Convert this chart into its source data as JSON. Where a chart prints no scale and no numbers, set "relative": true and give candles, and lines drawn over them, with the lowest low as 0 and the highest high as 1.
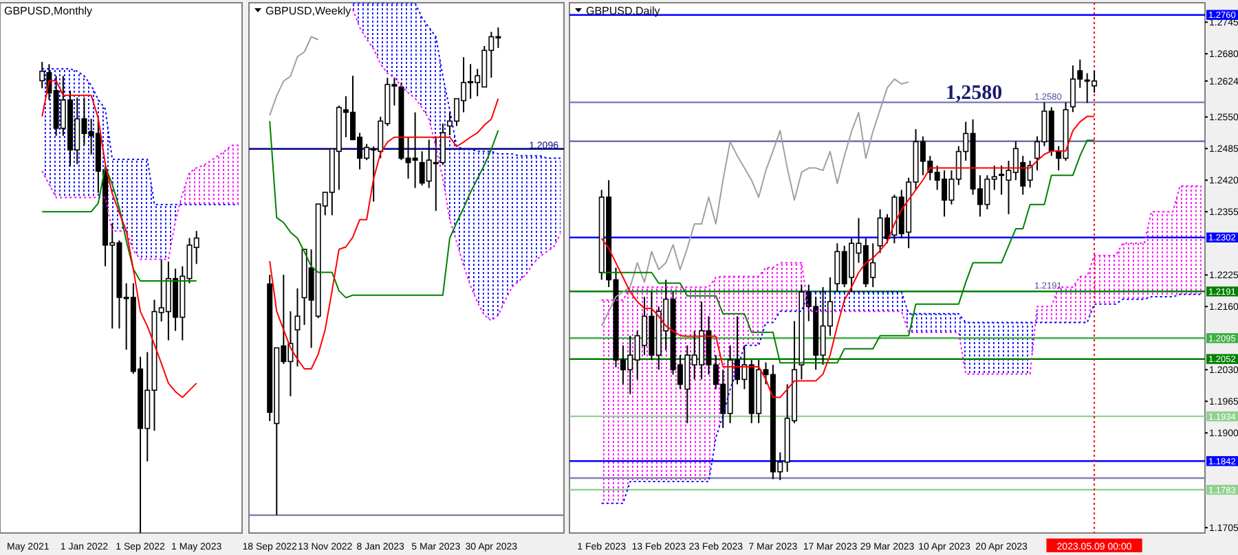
{
  "chart_data": [
    {
      "type": "candlestick",
      "title": "GBPUSD,Monthly",
      "relative": true,
      "tick_labels": "x",
      "categories": [
        "May 2021",
        null,
        null,
        null,
        null,
        null,
        null,
        null,
        "1 Jan 2022",
        null,
        null,
        null,
        null,
        null,
        null,
        null,
        "1 Sep 2022",
        null,
        null,
        null,
        null,
        null,
        null,
        null,
        "1 May 2023",
        null,
        null,
        null,
        null,
        null,
        null
      ],
      "ohlc": [
        null,
        null,
        [
          0.96,
          1.0,
          0.944,
          0.98
        ],
        [
          0.977,
          0.995,
          0.919,
          0.934
        ],
        [
          0.939,
          0.97,
          0.843,
          0.859
        ],
        [
          0.859,
          0.97,
          0.843,
          0.919
        ],
        [
          0.919,
          0.939,
          0.778,
          0.813
        ],
        [
          0.813,
          0.924,
          0.783,
          0.879
        ],
        [
          0.879,
          0.924,
          0.823,
          0.848
        ],
        [
          0.852,
          0.879,
          0.803,
          0.843
        ],
        [
          0.848,
          0.879,
          0.722,
          0.768
        ],
        [
          0.768,
          0.778,
          0.566,
          0.611
        ],
        [
          0.611,
          0.657,
          0.434,
          0.616
        ],
        [
          0.616,
          0.621,
          0.434,
          0.5
        ],
        [
          0.498,
          0.53,
          0.389,
          0.5
        ],
        [
          0.5,
          0.53,
          0.338,
          0.343
        ],
        [
          0.348,
          0.374,
          0,
          0.222
        ],
        [
          0.222,
          0.384,
          0.152,
          0.303
        ],
        [
          0.303,
          0.495,
          0.217,
          0.47
        ],
        [
          0.468,
          0.581,
          0.449,
          0.478
        ],
        [
          0.47,
          0.576,
          0.409,
          0.54
        ],
        [
          0.54,
          0.561,
          0.429,
          0.458
        ],
        [
          0.458,
          0.566,
          0.409,
          0.545
        ],
        [
          0.54,
          0.626,
          0.53,
          0.611
        ],
        [
          0.606,
          0.641,
          0.571,
          0.626
        ],
        null,
        null,
        null,
        null,
        null,
        null
      ],
      "series": [
        {
          "type": "line",
          "line_style": "dotted",
          "color": "#ff00ff",
          "values": [
            null,
            null,
            0.768,
            0.74,
            0.712,
            0.712,
            0.712,
            0.712,
            0.712,
            0.712,
            0.712,
            0.712,
            0.641,
            0.641,
            0.641,
            0.6,
            0.581,
            0.581,
            0.581,
            0.581,
            0.581,
            0.662,
            0.72,
            0.765,
            0.775,
            0.78,
            0.79,
            0.8,
            0.81,
            0.823,
            0.823
          ]
        },
        {
          "type": "line",
          "line_style": "dotted",
          "color": "#0000ff",
          "values": [
            null,
            null,
            0.985,
            0.985,
            0.985,
            0.985,
            0.985,
            0.98,
            0.97,
            0.95,
            0.92,
            0.9,
            0.793,
            0.793,
            0.793,
            0.793,
            0.793,
            0.793,
            0.697,
            0.697,
            0.697,
            0.697,
            0.697,
            0.697,
            0.697,
            0.697,
            0.697,
            0.697,
            0.697,
            0.697,
            0.697
          ]
        },
        {
          "type": "line",
          "color": "#008000",
          "values": [
            null,
            null,
            0.682,
            0.682,
            0.682,
            0.682,
            0.682,
            0.682,
            0.682,
            0.682,
            0.7,
            0.778,
            0.74,
            0.69,
            0.62,
            0.56,
            0.535,
            0.535,
            0.535,
            0.535,
            0.535,
            0.535,
            0.535,
            0.535,
            0.535,
            null,
            null,
            null,
            null,
            null,
            null
          ]
        },
        {
          "type": "line",
          "color": "#ff0000",
          "values": [
            null,
            null,
            0.884,
            0.96,
            0.96,
            0.929,
            0.929,
            0.929,
            0.929,
            0.929,
            0.88,
            0.783,
            0.72,
            0.68,
            0.641,
            0.56,
            0.47,
            0.439,
            0.4,
            0.36,
            0.318,
            0.3,
            0.288,
            0.303,
            0.318,
            null,
            null,
            null,
            null,
            null,
            null
          ]
        }
      ]
    },
    {
      "type": "candlestick",
      "title": "GBPUSD,Weekly",
      "relative": true,
      "tick_labels": "x",
      "categories": [
        "18 Sep 2022",
        null,
        null,
        null,
        null,
        null,
        null,
        null,
        "13 Nov 2022",
        null,
        null,
        null,
        null,
        null,
        null,
        null,
        "8 Jan 2023",
        null,
        null,
        null,
        null,
        null,
        null,
        null,
        "5 Mar 2023",
        null,
        null,
        null,
        null,
        null,
        null,
        null,
        "30 Apr 2023",
        null,
        null,
        null,
        null,
        null,
        null,
        null,
        null,
        null,
        null
      ],
      "ohlc": [
        [
          0.474,
          0.493,
          0.193,
          0.211
        ],
        [
          0.188,
          0.343,
          0,
          0.343
        ],
        [
          0.347,
          0.493,
          0.31,
          0.315
        ],
        [
          0.315,
          0.418,
          0.244,
          0.352
        ],
        [
          0.38,
          0.465,
          0.305,
          0.408
        ],
        [
          0.446,
          0.545,
          0.39,
          0.545
        ],
        [
          0.507,
          0.545,
          0.343,
          0.441
        ],
        [
          0.408,
          0.638,
          0.404,
          0.638
        ],
        [
          0.634,
          0.662,
          0.615,
          0.662
        ],
        [
          0.662,
          0.751,
          0.615,
          0.751
        ],
        [
          0.746,
          0.84,
          0.667,
          0.836
        ],
        [
          0.831,
          0.859,
          0.775,
          0.826
        ],
        [
          0.826,
          0.901,
          0.77,
          0.77
        ],
        [
          0.775,
          0.784,
          0.709,
          0.732
        ],
        [
          0.732,
          0.761,
          0.728,
          0.754
        ],
        [
          0.751,
          0.756,
          0.643,
          0.751
        ],
        [
          0.746,
          0.817,
          0.732,
          0.808
        ],
        [
          0.803,
          0.897,
          0.798,
          0.883
        ],
        [
          0.883,
          0.897,
          0.84,
          0.88
        ],
        [
          0.878,
          0.887,
          0.728,
          0.732
        ],
        [
          0.732,
          0.775,
          0.69,
          0.723
        ],
        [
          0.732,
          0.826,
          0.671,
          0.728
        ],
        [
          0.723,
          0.746,
          0.676,
          0.681
        ],
        [
          0.685,
          0.77,
          0.671,
          0.728
        ],
        [
          0.723,
          0.775,
          0.624,
          0.723
        ],
        [
          0.723,
          0.803,
          0.718,
          0.784
        ],
        [
          0.798,
          0.826,
          0.779,
          0.808
        ],
        [
          0.808,
          0.854,
          0.798,
          0.854
        ],
        [
          0.85,
          0.939,
          0.826,
          0.887
        ],
        [
          0.887,
          0.925,
          0.854,
          0.889
        ],
        [
          0.887,
          0.915,
          0.859,
          0.901
        ],
        [
          0.878,
          0.962,
          0.878,
          0.953
        ],
        [
          0.953,
          0.991,
          0.897,
          0.981
        ],
        [
          0.981,
          1,
          0.958,
          0.981
        ],
        null,
        null,
        null,
        null,
        null,
        null,
        null,
        null,
        null
      ],
      "series": [
        {
          "type": "line",
          "line_style": "dotted",
          "color": "#ff00ff",
          "values": [
            null,
            null,
            null,
            null,
            null,
            null,
            null,
            null,
            null,
            null,
            null,
            null,
            1.037,
            1.0,
            0.976,
            0.956,
            0.925,
            0.906,
            0.897,
            0.88,
            0.866,
            0.855,
            0.835,
            0.812,
            0.755,
            0.69,
            0.606,
            0.56,
            0.512,
            0.47,
            0.437,
            0.41,
            0.399,
            0.41,
            0.44,
            0.468,
            0.48,
            0.493,
            0.515,
            0.53,
            0.54,
            0.55,
            0.577
          ]
        },
        {
          "type": "line",
          "line_style": "dotted",
          "color": "#0000ff",
          "values": [
            null,
            null,
            null,
            null,
            null,
            null,
            null,
            null,
            null,
            null,
            null,
            null,
            1.05,
            1.05,
            1.05,
            1.05,
            1.05,
            1.05,
            1.05,
            1.05,
            1.05,
            1.05,
            1.02,
            1.0,
            0.981,
            0.9,
            0.831,
            0.756,
            0.751,
            0.751,
            0.746,
            0.746,
            0.746,
            0.741,
            0.741,
            0.741,
            0.737,
            0.737,
            0.737,
            0.737,
            0.732,
            0.732,
            0.732
          ]
        },
        {
          "type": "line",
          "color": "#a0a0a0",
          "values": [
            0.82,
            0.86,
            0.89,
            0.9,
            0.94,
            0.95,
            0.981,
            0.975,
            null,
            null,
            null,
            null,
            null,
            null,
            null,
            null,
            null,
            null,
            null,
            null,
            null,
            null,
            null,
            null,
            null,
            null,
            null,
            null,
            null,
            null,
            null,
            null,
            null,
            null,
            null,
            null,
            null,
            null,
            null,
            null,
            null,
            null,
            null
          ]
        },
        {
          "type": "line",
          "color": "#008000",
          "values": [
            0.808,
            0.61,
            0.6,
            0.58,
            0.568,
            0.54,
            0.51,
            0.498,
            0.498,
            0.498,
            0.46,
            0.446,
            0.451,
            0.451,
            0.451,
            0.451,
            0.451,
            0.451,
            0.451,
            0.451,
            0.451,
            0.451,
            0.451,
            0.451,
            0.451,
            0.451,
            0.568,
            0.6,
            0.63,
            0.662,
            0.69,
            0.718,
            0.75,
            0.789,
            null,
            null,
            null,
            null,
            null,
            null,
            null,
            null,
            null
          ]
        },
        {
          "type": "line",
          "color": "#ff0000",
          "values": [
            0.521,
            0.418,
            0.38,
            0.343,
            0.32,
            0.3,
            0.3,
            0.33,
            0.38,
            0.46,
            0.545,
            0.55,
            0.57,
            0.606,
            0.606,
            0.69,
            0.742,
            0.765,
            0.775,
            0.775,
            0.775,
            0.775,
            0.775,
            0.775,
            0.775,
            0.775,
            0.775,
            0.756,
            0.765,
            0.775,
            0.784,
            0.8,
            0.812,
            0.854,
            null,
            null,
            null,
            null,
            null,
            null,
            null,
            null,
            null
          ]
        }
      ],
      "ref_lines": [
        {
          "axis": "y",
          "value": 0.751,
          "color": "#000080"
        },
        {
          "axis": "y",
          "value": 0,
          "color": "#8080b0"
        }
      ],
      "annotations": [
        "1.2096"
      ]
    },
    {
      "type": "candlestick",
      "title": "GBPUSD,Daily",
      "categories": [
        "1 Feb 2023",
        null,
        null,
        null,
        null,
        null,
        null,
        null,
        "13 Feb 2023",
        null,
        null,
        null,
        null,
        null,
        null,
        null,
        "23 Feb 2023",
        null,
        null,
        null,
        null,
        null,
        null,
        null,
        "7 Mar 2023",
        null,
        null,
        null,
        null,
        null,
        null,
        null,
        "17 Mar 2023",
        null,
        null,
        null,
        null,
        null,
        null,
        null,
        "29 Mar 2023",
        null,
        null,
        null,
        null,
        null,
        null,
        null,
        "10 Apr 2023",
        null,
        null,
        null,
        null,
        null,
        null,
        null,
        "20 Apr 2023",
        null,
        null,
        null,
        null,
        null,
        null,
        null,
        null,
        null,
        null,
        null,
        null,
        "2023.05.09 00:00",
        null,
        null,
        null,
        null,
        null,
        null,
        null,
        null,
        null,
        null,
        null,
        null,
        null,
        null,
        null
      ],
      "ylim": [
        1.1694,
        1.2785
      ],
      "yticks": [
        1.2745,
        {
          "value": 1.268,
          "label": "1.2680"
        },
        1.2624,
        {
          "value": 1.255,
          "label": "1.2550"
        },
        1.2485,
        {
          "value": 1.242,
          "label": "1.2420"
        },
        1.2355,
        1.2225,
        {
          "value": 1.216,
          "label": "1.2160"
        },
        {
          "value": 1.203,
          "label": "1.2030"
        },
        1.1965,
        {
          "value": 1.19,
          "label": "1.1900"
        },
        1.1705
      ],
      "ohlc": [
        [
          1.223,
          1.24,
          1.2215,
          1.2385
        ],
        [
          1.2385,
          1.242,
          1.22,
          1.2215
        ],
        [
          1.2215,
          1.224,
          1.2035,
          1.205
        ],
        [
          1.205,
          1.208,
          1.2,
          1.203
        ],
        [
          1.203,
          1.21,
          1.198,
          1.206
        ],
        [
          1.205,
          1.211,
          1.201,
          1.21
        ],
        [
          1.208,
          1.218,
          1.206,
          1.214
        ],
        [
          1.214,
          1.219,
          1.205,
          1.206
        ],
        [
          1.206,
          1.216,
          1.203,
          1.215
        ],
        [
          1.211,
          1.2215,
          1.207,
          1.2175
        ],
        [
          1.2175,
          1.219,
          1.202,
          1.203
        ],
        [
          1.204,
          1.206,
          1.199,
          1.2
        ],
        [
          1.199,
          1.208,
          1.192,
          1.206
        ],
        [
          1.204,
          1.211,
          1.201,
          1.206
        ],
        [
          1.204,
          1.217,
          1.201,
          1.211
        ],
        [
          1.211,
          1.214,
          1.202,
          1.204
        ],
        [
          1.204,
          1.206,
          1.199,
          1.2
        ],
        [
          1.2,
          1.203,
          1.191,
          1.194
        ],
        [
          1.194,
          1.208,
          1.192,
          1.205
        ],
        [
          1.205,
          1.214,
          1.2,
          1.201
        ],
        [
          1.201,
          1.208,
          1.199,
          1.204
        ],
        [
          1.204,
          1.205,
          1.192,
          1.194
        ],
        [
          1.194,
          1.205,
          1.192,
          1.203
        ],
        [
          1.203,
          1.2045,
          1.2,
          1.202
        ],
        [
          1.202,
          1.204,
          1.1805,
          1.182
        ],
        [
          1.182,
          1.186,
          1.1803,
          1.184
        ],
        [
          1.184,
          1.2,
          1.182,
          1.193
        ],
        [
          1.1925,
          1.213,
          1.192,
          1.203
        ],
        [
          1.204,
          1.2205,
          1.201,
          1.219
        ],
        [
          1.219,
          1.2205,
          1.213,
          1.216
        ],
        [
          1.216,
          1.218,
          1.203,
          1.206
        ],
        [
          1.206,
          1.22,
          1.204,
          1.212
        ],
        [
          1.212,
          1.222,
          1.21,
          1.217
        ],
        [
          1.2207,
          1.229,
          1.219,
          1.2273
        ],
        [
          1.2273,
          1.2285,
          1.22,
          1.2207
        ],
        [
          1.222,
          1.23,
          1.219,
          1.229
        ],
        [
          1.227,
          1.2342,
          1.225,
          1.229
        ],
        [
          1.2285,
          1.23,
          1.22,
          1.2207
        ],
        [
          1.222,
          1.229,
          1.22,
          1.225
        ],
        [
          1.2285,
          1.236,
          1.227,
          1.2342
        ],
        [
          1.2342,
          1.235,
          1.229,
          1.23
        ],
        [
          1.2307,
          1.239,
          1.229,
          1.2385
        ],
        [
          1.2385,
          1.24,
          1.23,
          1.231
        ],
        [
          1.2313,
          1.2425,
          1.228,
          1.2416
        ],
        [
          1.2416,
          1.2525,
          1.24,
          1.2499
        ],
        [
          1.2499,
          1.251,
          1.243,
          1.2459
        ],
        [
          1.2459,
          1.247,
          1.242,
          1.2436
        ],
        [
          1.2436,
          1.245,
          1.24,
          1.242
        ],
        [
          1.2422,
          1.244,
          1.2345,
          1.2379
        ],
        [
          1.2379,
          1.244,
          1.237,
          1.2422
        ],
        [
          1.2422,
          1.249,
          1.241,
          1.2479
        ],
        [
          1.2479,
          1.254,
          1.246,
          1.2516
        ],
        [
          1.2516,
          1.2545,
          1.239,
          1.2402
        ],
        [
          1.2402,
          1.243,
          1.2345,
          1.237
        ],
        [
          1.237,
          1.243,
          1.236,
          1.2422
        ],
        [
          1.2422,
          1.245,
          1.24,
          1.2427
        ],
        [
          1.243,
          1.245,
          1.239,
          1.2432
        ],
        [
          1.242,
          1.246,
          1.235,
          1.244
        ],
        [
          1.2436,
          1.25,
          1.242,
          1.2485
        ],
        [
          1.2456,
          1.247,
          1.239,
          1.2408
        ],
        [
          1.242,
          1.246,
          1.2405,
          1.245
        ],
        [
          1.2465,
          1.251,
          1.244,
          1.2499
        ],
        [
          1.2499,
          1.258,
          1.249,
          1.2562
        ],
        [
          1.2562,
          1.257,
          1.247,
          1.248
        ],
        [
          1.248,
          1.249,
          1.244,
          1.2465
        ],
        [
          1.2465,
          1.258,
          1.246,
          1.2565
        ],
        [
          1.2571,
          1.2656,
          1.256,
          1.2628
        ],
        [
          1.2645,
          1.2668,
          1.261,
          1.2628
        ],
        [
          1.2626,
          1.264,
          1.2579,
          1.2624
        ],
        [
          1.2614,
          1.2645,
          1.26,
          1.2624
        ],
        null,
        null,
        null,
        null,
        null,
        null,
        null,
        null,
        null,
        null,
        null,
        null,
        null,
        null,
        null
      ],
      "series": [
        {
          "type": "line",
          "line_style": "dotted",
          "color": "#ff00ff",
          "values": [
            1.2173,
            1.2173,
            1.2173,
            1.2173,
            1.22,
            1.22,
            1.22,
            1.22,
            1.22,
            1.22,
            1.22,
            1.22,
            1.22,
            1.22,
            1.22,
            1.22,
            1.222,
            1.2222,
            1.2222,
            1.2222,
            1.2222,
            1.2222,
            1.2222,
            1.224,
            1.224,
            1.225,
            1.225,
            1.225,
            1.225,
            1.215,
            1.215,
            1.215,
            1.215,
            1.215,
            1.215,
            1.215,
            1.215,
            1.215,
            1.215,
            1.215,
            1.215,
            1.215,
            1.215,
            1.2107,
            1.2107,
            1.2107,
            1.2107,
            1.2107,
            1.2107,
            1.2107,
            1.2107,
            1.2021,
            1.2021,
            1.2021,
            1.2021,
            1.2021,
            1.2021,
            1.2021,
            1.2021,
            1.2021,
            1.2021,
            1.216,
            1.216,
            1.216,
            1.22,
            1.22,
            1.22,
            1.2222,
            1.2222,
            1.2265,
            1.2265,
            1.2265,
            1.2265,
            1.229,
            1.229,
            1.229,
            1.229,
            1.2355,
            1.2355,
            1.2355,
            1.2355,
            1.2408,
            1.2408,
            1.2408,
            1.2408
          ]
        },
        {
          "type": "line",
          "line_style": "dotted",
          "color": "#0000ff",
          "values": [
            1.1755,
            1.1755,
            1.1755,
            1.1755,
            1.18,
            1.18,
            1.18,
            1.18,
            1.18,
            1.18,
            1.18,
            1.18,
            1.18,
            1.18,
            1.18,
            1.18,
            1.189,
            1.1936,
            1.199,
            1.203,
            1.208,
            1.208,
            1.208,
            1.2127,
            1.2127,
            1.215,
            1.215,
            1.215,
            1.215,
            1.219,
            1.219,
            1.219,
            1.219,
            1.219,
            1.219,
            1.219,
            1.219,
            1.219,
            1.219,
            1.219,
            1.219,
            1.219,
            1.219,
            1.2145,
            1.2145,
            1.2145,
            1.2145,
            1.2145,
            1.2145,
            1.2145,
            1.2145,
            1.2127,
            1.2127,
            1.2127,
            1.2127,
            1.2127,
            1.2127,
            1.2127,
            1.2127,
            1.2127,
            1.2127,
            1.2127,
            1.2127,
            1.2127,
            1.2127,
            1.2127,
            1.2127,
            1.2127,
            1.2127,
            1.2165,
            1.2165,
            1.2165,
            1.2165,
            1.2175,
            1.2175,
            1.2175,
            1.2175,
            1.218,
            1.218,
            1.218,
            1.218,
            1.2185,
            1.2185,
            1.2185,
            1.2185
          ]
        },
        {
          "type": "line",
          "color": "#a0a0a0",
          "values": [
            1.212,
            1.215,
            1.218,
            1.219,
            1.22,
            1.225,
            1.221,
            1.2273,
            1.2236,
            1.225,
            1.2287,
            1.2236,
            1.228,
            1.233,
            1.233,
            1.2385,
            1.233,
            1.242,
            1.2499,
            1.247,
            1.2445,
            1.242,
            1.2385,
            1.244,
            1.248,
            1.2522,
            1.2445,
            1.2379,
            1.2436,
            1.2445,
            1.2445,
            1.244,
            1.2479,
            1.2413,
            1.247,
            1.252,
            1.2559,
            1.2465,
            1.252,
            1.2565,
            1.261,
            1.2628,
            1.2618,
            1.2622,
            null,
            null,
            null,
            null,
            null,
            null,
            null,
            null,
            null,
            null,
            null,
            null,
            null,
            null,
            null,
            null,
            null,
            null,
            null,
            null,
            null,
            null,
            null,
            null,
            null,
            null,
            null,
            null,
            null,
            null,
            null,
            null,
            null,
            null,
            null,
            null,
            null,
            null,
            null,
            null,
            null
          ]
        },
        {
          "type": "line",
          "color": "#008000",
          "values": [
            1.223,
            1.223,
            1.223,
            1.223,
            1.223,
            1.223,
            1.223,
            1.223,
            1.2208,
            1.2208,
            1.2208,
            1.2208,
            1.2182,
            1.2182,
            1.2182,
            1.2182,
            1.2182,
            1.2145,
            1.2145,
            1.2145,
            1.2145,
            1.2107,
            1.2107,
            1.2107,
            1.2107,
            1.2044,
            1.2044,
            1.2044,
            1.2044,
            1.2044,
            1.2044,
            1.2044,
            1.2044,
            1.2044,
            1.2073,
            1.2073,
            1.2073,
            1.2073,
            1.2073,
            1.21,
            1.21,
            1.21,
            1.21,
            1.21,
            1.2165,
            1.2165,
            1.2165,
            1.2165,
            1.2165,
            1.2165,
            1.2165,
            1.221,
            1.225,
            1.225,
            1.225,
            1.225,
            1.225,
            1.2285,
            1.232,
            1.232,
            1.237,
            1.237,
            1.237,
            1.243,
            1.243,
            1.243,
            1.243,
            1.247,
            1.2502,
            1.2502,
            null,
            null,
            null,
            null,
            null,
            null,
            null,
            null,
            null,
            null,
            null,
            null,
            null,
            null,
            null
          ]
        },
        {
          "type": "line",
          "color": "#ff0000",
          "values": [
            1.23,
            1.228,
            1.225,
            1.222,
            1.219,
            1.217,
            1.2156,
            1.2156,
            1.214,
            1.212,
            1.211,
            1.21,
            1.2099,
            1.2099,
            1.2099,
            1.2099,
            1.2099,
            1.2036,
            1.2036,
            1.2036,
            1.2036,
            1.2036,
            1.2036,
            1.201,
            1.1973,
            1.1973,
            1.199,
            1.2007,
            1.2007,
            1.2007,
            1.2007,
            1.2021,
            1.206,
            1.212,
            1.2173,
            1.22,
            1.223,
            1.225,
            1.226,
            1.2275,
            1.2293,
            1.233,
            1.2359,
            1.238,
            1.24,
            1.242,
            1.2445,
            1.2445,
            1.2445,
            1.2445,
            1.2445,
            1.2445,
            1.2445,
            1.2445,
            1.2445,
            1.2445,
            1.2445,
            1.2445,
            1.2445,
            1.2445,
            1.2445,
            1.246,
            1.2473,
            1.248,
            1.248,
            1.248,
            1.2522,
            1.254,
            1.2551,
            1.2551,
            null,
            null,
            null,
            null,
            null,
            null,
            null,
            null,
            null,
            null,
            null,
            null,
            null,
            null,
            null
          ]
        }
      ],
      "ref_lines": [
        {
          "axis": "y",
          "value": 1.276,
          "label": "1.2760",
          "color": "#0000ff"
        },
        {
          "axis": "y",
          "value": 1.258,
          "color": "#8080c0"
        },
        {
          "axis": "y",
          "value": 1.25,
          "color": "#6060a0"
        },
        {
          "axis": "y",
          "value": 1.2302,
          "label": "1.2302",
          "color": "#0000ff"
        },
        {
          "axis": "y",
          "value": 1.2191,
          "label": "1.2191",
          "color": "#008000"
        },
        {
          "axis": "y",
          "value": 1.2095,
          "label": "1.2095",
          "color": "#3cb043"
        },
        {
          "axis": "y",
          "value": 1.2052,
          "label": "1.2052",
          "color": "#008000"
        },
        {
          "axis": "y",
          "value": 1.1934,
          "label": "1.1934",
          "color": "#90d090"
        },
        {
          "axis": "y",
          "value": 1.1842,
          "label": "1.1842",
          "color": "#0000ff"
        },
        {
          "axis": "y",
          "value": 1.1807,
          "color": "#8080b0"
        },
        {
          "axis": "y",
          "value": 1.1783,
          "label": "1.1783",
          "color": "#90d090"
        },
        {
          "axis": "x",
          "value": "2023.05.09 00:00",
          "color": "#ff0000",
          "line_style": "dotted"
        }
      ],
      "annotations": [
        "1,2580",
        {
          "text": "1.2580",
          "y": 1.258
        },
        {
          "text": "1.2191",
          "y": 1.2191
        }
      ]
    }
  ]
}
